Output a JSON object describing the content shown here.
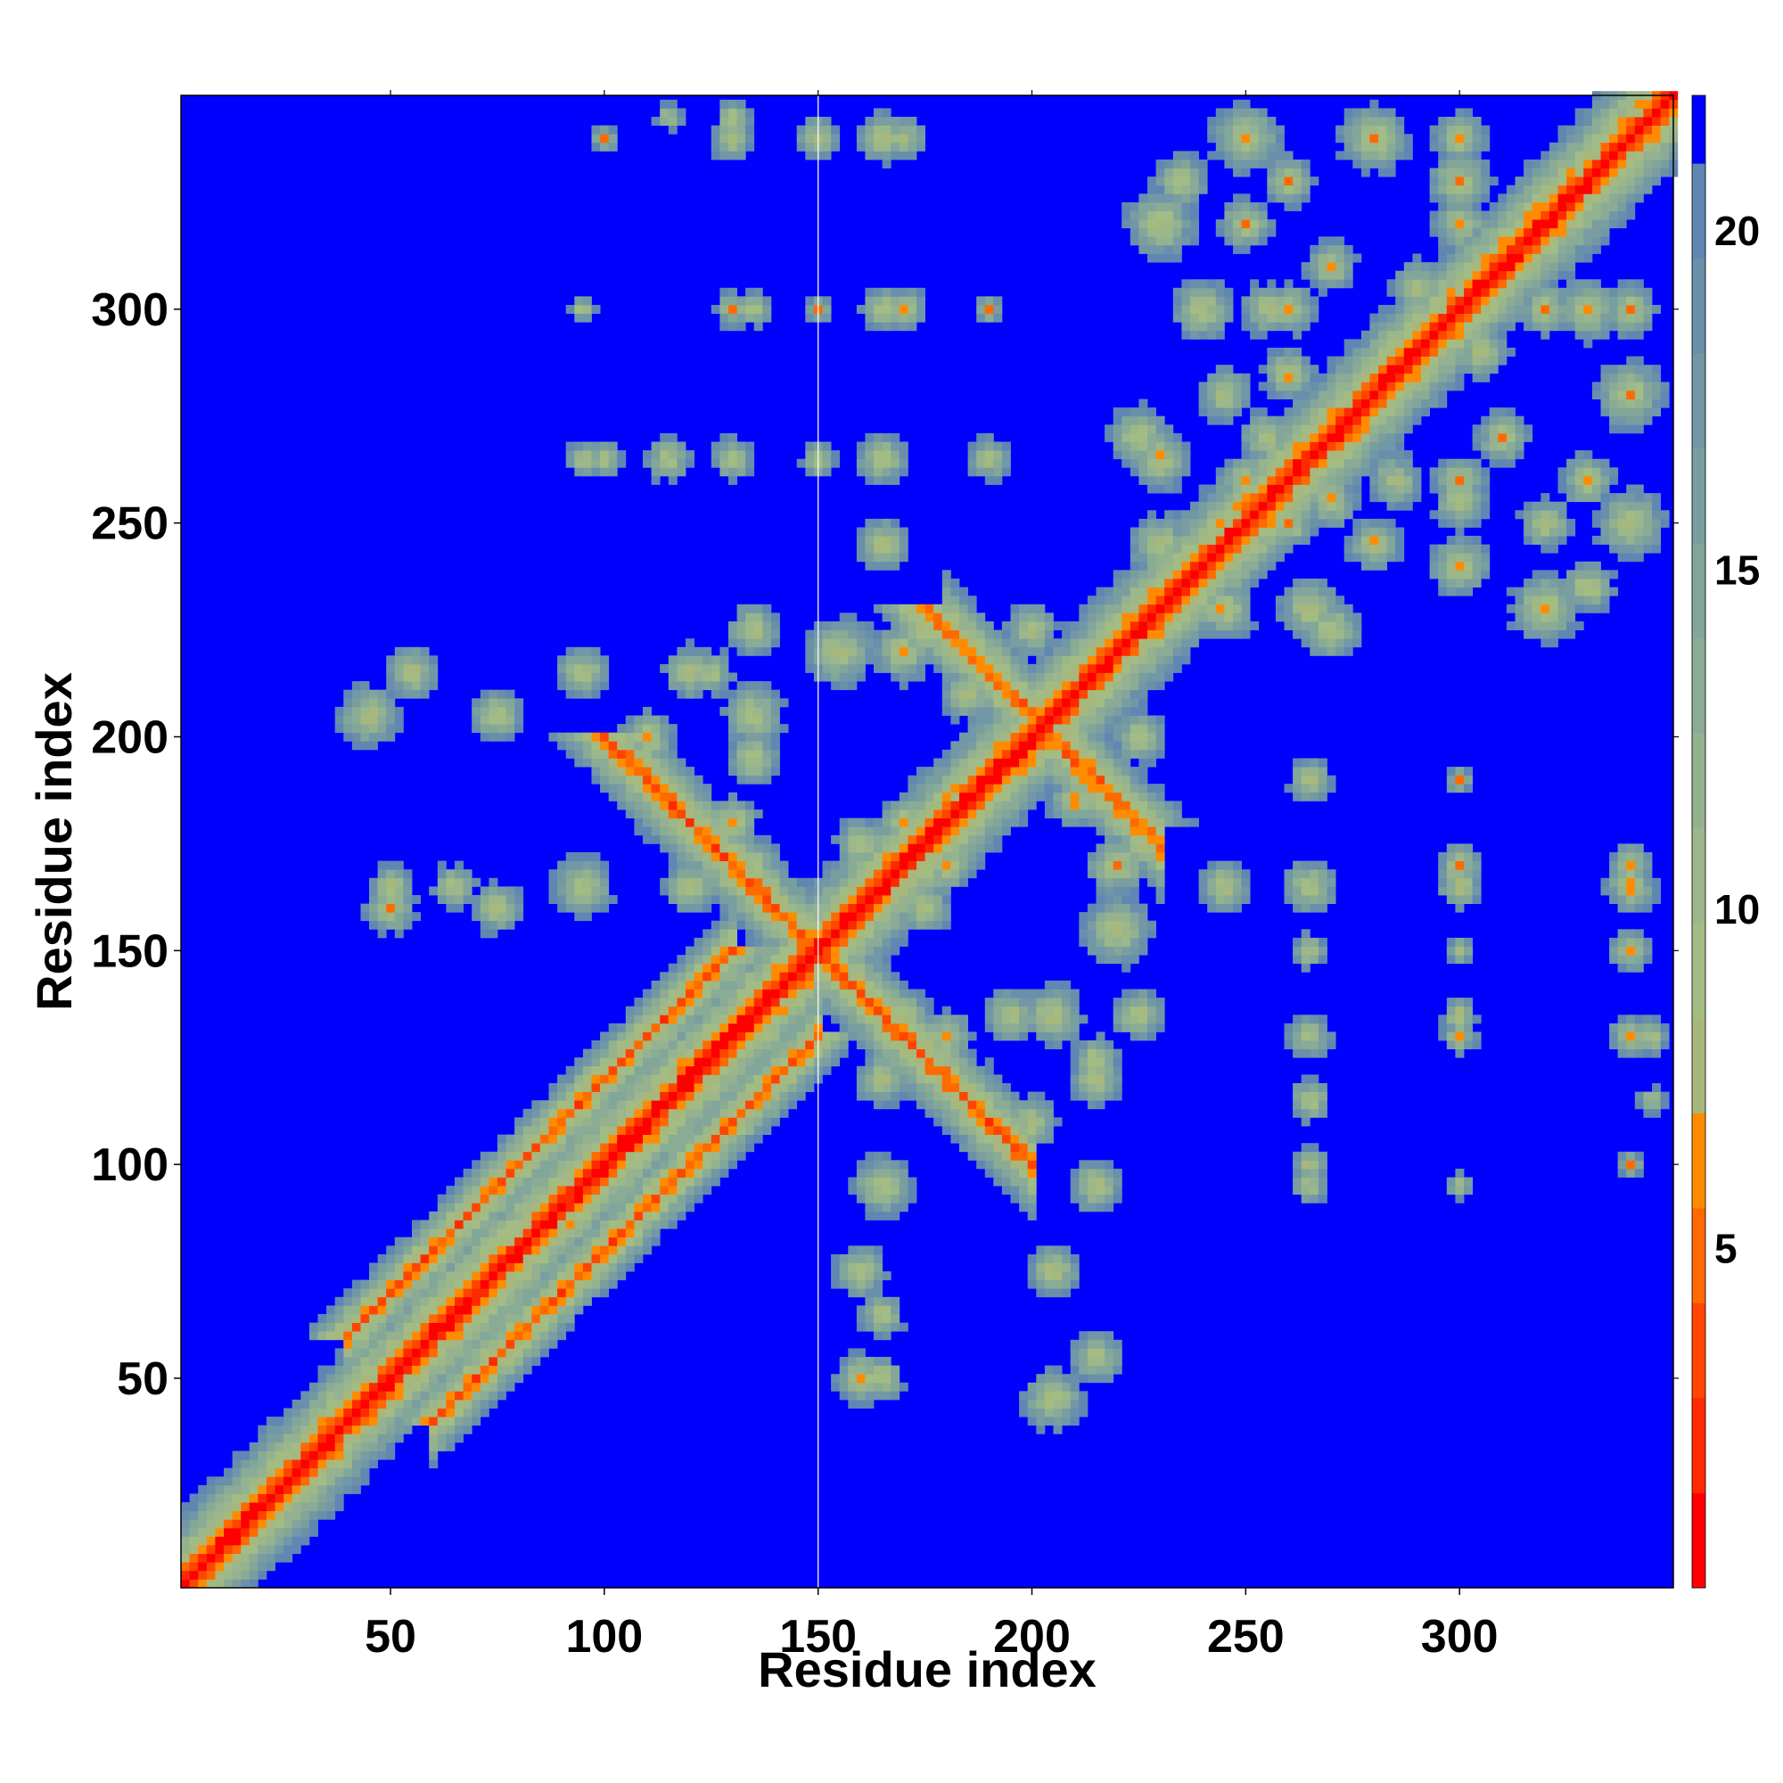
{
  "chart_data": {
    "type": "heatmap",
    "title": "",
    "xlabel": "Residue index",
    "ylabel": "Residue index",
    "xlim": [
      1,
      350
    ],
    "ylim": [
      1,
      350
    ],
    "x_ticks": [
      50,
      100,
      150,
      200,
      250,
      300
    ],
    "y_ticks": [
      50,
      100,
      150,
      200,
      250,
      300
    ],
    "x_tick_labels": [
      "50",
      "100",
      "150",
      "200",
      "250",
      "300"
    ],
    "y_tick_labels": [
      "50",
      "100",
      "150",
      "200",
      "250",
      "300"
    ],
    "background_color": "#0000ff",
    "colorbar": {
      "range": [
        0,
        22
      ],
      "ticks": [
        5,
        10,
        15,
        20
      ],
      "tick_labels": [
        "5",
        "10",
        "15",
        "20"
      ],
      "levels": [
        {
          "from": 0,
          "to": 1.4,
          "color": "#ff0000"
        },
        {
          "from": 1.4,
          "to": 2.8,
          "color": "#ff2a00"
        },
        {
          "from": 2.8,
          "to": 4.2,
          "color": "#ff4500"
        },
        {
          "from": 4.2,
          "to": 5.6,
          "color": "#ff6a00"
        },
        {
          "from": 5.6,
          "to": 7.0,
          "color": "#ff8c00"
        },
        {
          "from": 7.0,
          "to": 8.4,
          "color": "#a8b87c"
        },
        {
          "from": 8.4,
          "to": 9.8,
          "color": "#a3bc84"
        },
        {
          "from": 9.8,
          "to": 11.2,
          "color": "#9cb78a"
        },
        {
          "from": 11.2,
          "to": 12.6,
          "color": "#95b290"
        },
        {
          "from": 12.6,
          "to": 14.0,
          "color": "#8aab95"
        },
        {
          "from": 14.0,
          "to": 15.4,
          "color": "#82a69a"
        },
        {
          "from": 15.4,
          "to": 16.8,
          "color": "#7a9ea0"
        },
        {
          "from": 16.8,
          "to": 18.2,
          "color": "#7297a6"
        },
        {
          "from": 18.2,
          "to": 19.6,
          "color": "#6a8fab"
        },
        {
          "from": 19.6,
          "to": 21.0,
          "color": "#5f87b2"
        },
        {
          "from": 21.0,
          "to": 22.0,
          "color": "#0000ff"
        }
      ]
    },
    "features": {
      "diagonal": {
        "from": 1,
        "to": 350,
        "near_distance": 2
      },
      "parallel_bands": [
        {
          "offset": 20,
          "from": 40,
          "to": 130
        },
        {
          "offset": -20,
          "from": 60,
          "to": 150
        }
      ],
      "antiparallel_bands": [
        {
          "sum": 300,
          "from": 150,
          "to": 200
        },
        {
          "sum": 405,
          "from": 180,
          "to": 230
        }
      ],
      "contact_blobs": [
        [
          45,
          205,
          7
        ],
        [
          75,
          205,
          6
        ],
        [
          95,
          215,
          6
        ],
        [
          120,
          215,
          6
        ],
        [
          135,
          205,
          7
        ],
        [
          155,
          220,
          8
        ],
        [
          170,
          220,
          7
        ],
        [
          195,
          210,
          8
        ],
        [
          210,
          205,
          7
        ],
        [
          225,
          200,
          6
        ],
        [
          50,
          160,
          6
        ],
        [
          75,
          160,
          6
        ],
        [
          95,
          165,
          7
        ],
        [
          120,
          165,
          6
        ],
        [
          135,
          170,
          6
        ],
        [
          160,
          175,
          6
        ],
        [
          180,
          170,
          6
        ],
        [
          210,
          185,
          6
        ],
        [
          225,
          175,
          6
        ],
        [
          165,
          120,
          6
        ],
        [
          165,
          95,
          6
        ],
        [
          165,
          65,
          5
        ],
        [
          165,
          50,
          5
        ],
        [
          180,
          130,
          6
        ],
        [
          195,
          135,
          6
        ],
        [
          215,
          125,
          5
        ],
        [
          200,
          110,
          6
        ],
        [
          215,
          95,
          5
        ],
        [
          215,
          55,
          6
        ],
        [
          205,
          75,
          6
        ],
        [
          225,
          135,
          6
        ],
        [
          245,
          165,
          6
        ],
        [
          265,
          165,
          6
        ],
        [
          265,
          130,
          5
        ],
        [
          265,
          115,
          5
        ],
        [
          300,
          165,
          5
        ],
        [
          300,
          130,
          4
        ],
        [
          340,
          165,
          6
        ],
        [
          340,
          130,
          5
        ],
        [
          265,
          95,
          4
        ],
        [
          300,
          95,
          3
        ],
        [
          340,
          100,
          3
        ],
        [
          135,
          300,
          4
        ],
        [
          150,
          300,
          3
        ],
        [
          170,
          300,
          5
        ],
        [
          190,
          300,
          3
        ],
        [
          100,
          265,
          4
        ],
        [
          115,
          265,
          4
        ],
        [
          130,
          265,
          4
        ],
        [
          150,
          265,
          4
        ],
        [
          165,
          265,
          5
        ],
        [
          190,
          265,
          5
        ],
        [
          150,
          340,
          5
        ],
        [
          130,
          345,
          4
        ],
        [
          170,
          340,
          5
        ],
        [
          115,
          345,
          3
        ],
        [
          230,
          320,
          8
        ],
        [
          250,
          340,
          8
        ],
        [
          280,
          340,
          8
        ],
        [
          300,
          330,
          7
        ],
        [
          325,
          330,
          6
        ],
        [
          240,
          300,
          6
        ],
        [
          260,
          300,
          6
        ],
        [
          290,
          305,
          6
        ],
        [
          320,
          300,
          6
        ],
        [
          340,
          300,
          6
        ],
        [
          230,
          265,
          7
        ],
        [
          255,
          270,
          6
        ],
        [
          285,
          260,
          6
        ],
        [
          310,
          270,
          6
        ],
        [
          330,
          260,
          6
        ],
        [
          245,
          230,
          7
        ],
        [
          270,
          225,
          7
        ],
        [
          300,
          240,
          7
        ],
        [
          330,
          235,
          6
        ],
        [
          260,
          250,
          6
        ],
        [
          280,
          245,
          6
        ],
        [
          300,
          255,
          6
        ],
        [
          320,
          250,
          6
        ],
        [
          240,
          240,
          6
        ],
        [
          290,
          290,
          6
        ]
      ]
    }
  }
}
